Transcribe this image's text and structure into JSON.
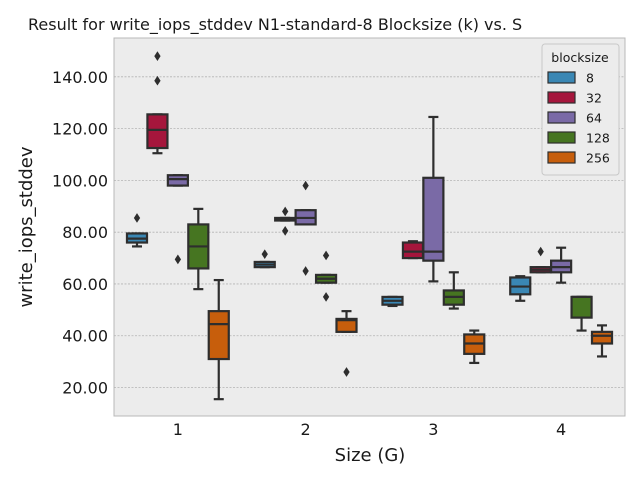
{
  "chart_data": {
    "type": "box",
    "title": "Result for write_iops_stddev N1-standard-8 Blocksize (k) vs. S",
    "xlabel": "Size (G)",
    "ylabel": "write_iops_stddev",
    "categories": [
      "1",
      "2",
      "3",
      "4"
    ],
    "ylim": [
      9,
      155
    ],
    "yticks": [
      20,
      40,
      60,
      80,
      100,
      120,
      140
    ],
    "ytick_labels": [
      "20.00",
      "40.00",
      "60.00",
      "80.00",
      "100.00",
      "120.00",
      "140.00"
    ],
    "grid": true,
    "legend": {
      "title": "blocksize",
      "placement": "top-right"
    },
    "series": [
      {
        "name": "8",
        "color": "#3a87b4",
        "boxes": [
          {
            "category": "1",
            "min": 74.5,
            "q1": 76,
            "median": 77.5,
            "q3": 79.5,
            "max": 79.5,
            "outliers": [
              85.5
            ]
          },
          {
            "category": "2",
            "min": 66.5,
            "q1": 66.5,
            "median": 67.5,
            "q3": 68.5,
            "max": 68.5,
            "outliers": [
              71.5
            ]
          },
          {
            "category": "3",
            "min": 51.5,
            "q1": 52,
            "median": 53.5,
            "q3": 55,
            "max": 55,
            "outliers": []
          },
          {
            "category": "4",
            "min": 53.5,
            "q1": 56,
            "median": 59,
            "q3": 62.5,
            "max": 63,
            "outliers": []
          }
        ]
      },
      {
        "name": "32",
        "color": "#a5163c",
        "boxes": [
          {
            "category": "1",
            "min": 110.5,
            "q1": 112.5,
            "median": 119.5,
            "q3": 125.5,
            "max": 125.5,
            "outliers": [
              148,
              138.5
            ]
          },
          {
            "category": "2",
            "min": 84.5,
            "q1": 84.5,
            "median": 85,
            "q3": 85.5,
            "max": 85.5,
            "outliers": [
              88,
              80.5
            ]
          },
          {
            "category": "3",
            "min": 70,
            "q1": 70,
            "median": 72.5,
            "q3": 76,
            "max": 76.5,
            "outliers": []
          },
          {
            "category": "4",
            "min": 64.5,
            "q1": 64.5,
            "median": 65.5,
            "q3": 66.5,
            "max": 66.5,
            "outliers": [
              72.5
            ]
          }
        ]
      },
      {
        "name": "64",
        "color": "#7a6aa6",
        "boxes": [
          {
            "category": "1",
            "min": 98,
            "q1": 98,
            "median": 100.5,
            "q3": 102,
            "max": 102,
            "outliers": [
              69.5
            ]
          },
          {
            "category": "2",
            "min": 83,
            "q1": 83,
            "median": 85.5,
            "q3": 88.5,
            "max": 88.5,
            "outliers": [
              98,
              65
            ]
          },
          {
            "category": "3",
            "min": 61,
            "q1": 69,
            "median": 72.5,
            "q3": 101,
            "max": 124.5,
            "outliers": []
          },
          {
            "category": "4",
            "min": 60.5,
            "q1": 64.5,
            "median": 66.5,
            "q3": 69,
            "max": 74,
            "outliers": []
          }
        ]
      },
      {
        "name": "128",
        "color": "#467521",
        "boxes": [
          {
            "category": "1",
            "min": 58,
            "q1": 66,
            "median": 74.5,
            "q3": 83,
            "max": 89,
            "outliers": []
          },
          {
            "category": "2",
            "min": 60.5,
            "q1": 60.5,
            "median": 62,
            "q3": 63.5,
            "max": 63.5,
            "outliers": [
              71,
              55
            ]
          },
          {
            "category": "3",
            "min": 50.5,
            "q1": 52,
            "median": 55,
            "q3": 57.5,
            "max": 64.5,
            "outliers": []
          },
          {
            "category": "4",
            "min": 42,
            "q1": 47,
            "median": 55,
            "q3": 55,
            "max": 55,
            "outliers": []
          }
        ]
      },
      {
        "name": "256",
        "color": "#c75e0c",
        "boxes": [
          {
            "category": "1",
            "min": 15.5,
            "q1": 31,
            "median": 44.5,
            "q3": 49.5,
            "max": 61.5,
            "outliers": []
          },
          {
            "category": "2",
            "min": 41.5,
            "q1": 41.5,
            "median": 46,
            "q3": 46.5,
            "max": 49.5,
            "outliers": [
              26
            ]
          },
          {
            "category": "3",
            "min": 29.5,
            "q1": 33,
            "median": 37,
            "q3": 40.5,
            "max": 42,
            "outliers": []
          },
          {
            "category": "4",
            "min": 32,
            "q1": 37,
            "median": 40,
            "q3": 41.5,
            "max": 44,
            "outliers": []
          }
        ]
      }
    ]
  }
}
